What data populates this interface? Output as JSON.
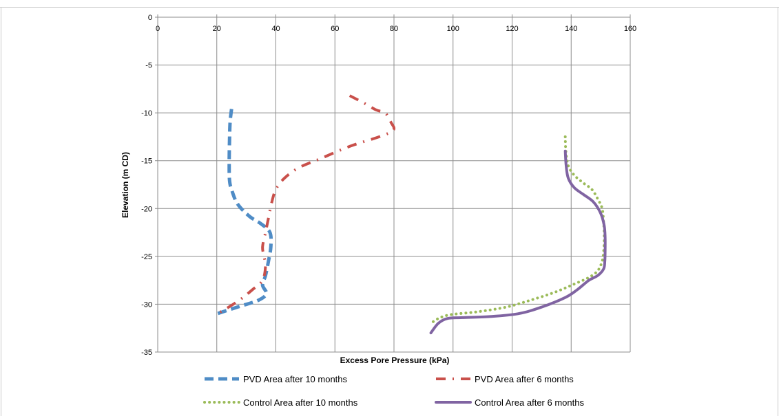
{
  "chart_data": {
    "type": "line",
    "title": "",
    "xlabel": "Excess Pore Pressure (kPa)",
    "ylabel": "Elevation (m CD)",
    "xlim": [
      0,
      160
    ],
    "ylim": [
      -35,
      0
    ],
    "xticks": [
      0,
      20,
      40,
      60,
      80,
      100,
      120,
      140,
      160
    ],
    "yticks": [
      0,
      -5,
      -10,
      -15,
      -20,
      -25,
      -30,
      -35
    ],
    "x_axis_position": "top",
    "grid": true,
    "legend_position": "bottom",
    "series": [
      {
        "name": "PVD Area after 10 months",
        "color": "#4f8cc6",
        "style": "dashed",
        "points": [
          [
            25,
            -9.6
          ],
          [
            24.5,
            -11
          ],
          [
            24.3,
            -13
          ],
          [
            24.2,
            -15
          ],
          [
            24.3,
            -17
          ],
          [
            25,
            -18
          ],
          [
            27,
            -19.5
          ],
          [
            31,
            -20.8
          ],
          [
            35,
            -21.6
          ],
          [
            38,
            -22.5
          ],
          [
            38.3,
            -24
          ],
          [
            37.5,
            -25.5
          ],
          [
            36.5,
            -27
          ],
          [
            35.5,
            -28
          ],
          [
            36.8,
            -28.9
          ],
          [
            34,
            -29.6
          ],
          [
            28,
            -30.2
          ],
          [
            23,
            -30.7
          ],
          [
            20,
            -31
          ]
        ]
      },
      {
        "name": "PVD Area after 6 months",
        "color": "#c9504b",
        "style": "dash-dot",
        "points": [
          [
            65,
            -8.2
          ],
          [
            70,
            -9
          ],
          [
            74,
            -9.7
          ],
          [
            77,
            -10
          ],
          [
            79,
            -11
          ],
          [
            79.8,
            -11.8
          ],
          [
            75,
            -12.5
          ],
          [
            65,
            -13.5
          ],
          [
            55,
            -14.8
          ],
          [
            48,
            -15.7
          ],
          [
            43,
            -16.8
          ],
          [
            40,
            -18
          ],
          [
            38.5,
            -19.5
          ],
          [
            37.5,
            -21
          ],
          [
            36.5,
            -22.5
          ],
          [
            35.5,
            -24
          ],
          [
            36,
            -25
          ],
          [
            36.5,
            -26
          ],
          [
            35.5,
            -27.5
          ],
          [
            32,
            -28.5
          ],
          [
            28,
            -29.5
          ],
          [
            23,
            -30.5
          ],
          [
            20,
            -31
          ]
        ]
      },
      {
        "name": "Control Area after 10 months",
        "color": "#9bbb59",
        "style": "dotted",
        "points": [
          [
            138,
            -12.5
          ],
          [
            138.2,
            -14
          ],
          [
            139,
            -15.5
          ],
          [
            141,
            -16.5
          ],
          [
            144,
            -17.3
          ],
          [
            147,
            -18
          ],
          [
            149,
            -19
          ],
          [
            150.5,
            -20
          ],
          [
            151,
            -21.5
          ],
          [
            151.2,
            -23
          ],
          [
            151,
            -24.5
          ],
          [
            150.5,
            -25.5
          ],
          [
            149,
            -26.5
          ],
          [
            146,
            -27.2
          ],
          [
            141,
            -27.9
          ],
          [
            134,
            -28.8
          ],
          [
            126,
            -29.6
          ],
          [
            118,
            -30.3
          ],
          [
            108,
            -30.8
          ],
          [
            99,
            -31.1
          ],
          [
            95,
            -31.5
          ],
          [
            92.5,
            -32
          ]
        ]
      },
      {
        "name": "Control Area after 6 months",
        "color": "#8064a2",
        "style": "solid",
        "points": [
          [
            138,
            -14
          ],
          [
            138.3,
            -15.5
          ],
          [
            139,
            -16.8
          ],
          [
            141,
            -17.8
          ],
          [
            144,
            -18.5
          ],
          [
            147.5,
            -19.3
          ],
          [
            150,
            -20.5
          ],
          [
            151.2,
            -21.8
          ],
          [
            151.5,
            -23
          ],
          [
            151.5,
            -24.5
          ],
          [
            151.4,
            -25.5
          ],
          [
            151,
            -26.3
          ],
          [
            149,
            -27
          ],
          [
            146,
            -27.5
          ],
          [
            142,
            -28.5
          ],
          [
            138,
            -29.3
          ],
          [
            130,
            -30.3
          ],
          [
            122,
            -31
          ],
          [
            112,
            -31.3
          ],
          [
            103,
            -31.4
          ],
          [
            98,
            -31.5
          ],
          [
            95,
            -32
          ],
          [
            92.5,
            -33
          ]
        ]
      }
    ]
  }
}
